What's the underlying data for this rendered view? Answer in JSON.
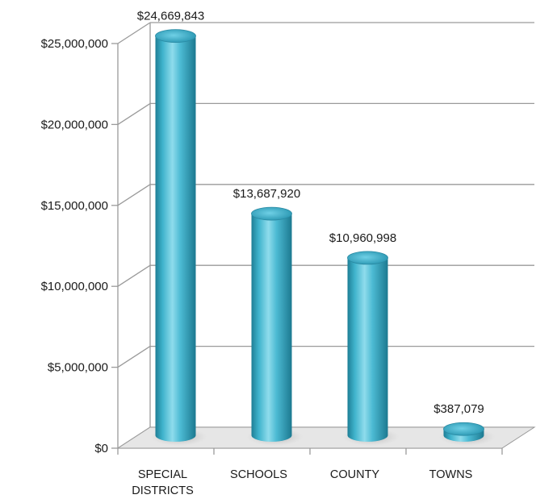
{
  "chart_data": {
    "type": "bar",
    "categories": [
      [
        "SPECIAL",
        "DISTRICTS"
      ],
      [
        "SCHOOLS"
      ],
      [
        "COUNTY"
      ],
      [
        "TOWNS"
      ]
    ],
    "values": [
      24669843,
      13687920,
      10960998,
      387079
    ],
    "data_labels": [
      "$24,669,843",
      "$13,687,920",
      "$10,960,998",
      "$387,079"
    ],
    "y_ticks": [
      0,
      5000000,
      10000000,
      15000000,
      20000000,
      25000000
    ],
    "y_tick_labels": [
      "$0",
      "$5,000,000",
      "$10,000,000",
      "$15,000,000",
      "$20,000,000",
      "$25,000,000"
    ],
    "ylim": [
      0,
      25000000
    ],
    "title": "",
    "xlabel": "",
    "ylabel": "",
    "grid": true,
    "legend": "none",
    "style": "3d-cylinder",
    "colors": {
      "bar_dark": "#1f7f96",
      "bar_mid": "#3fb3cc",
      "bar_light": "#8fdcec",
      "bar_top": "#2e9fba",
      "grid": "#9a9a9a",
      "floor": "#e6e6e6",
      "shadow": "#b8b8b8"
    }
  }
}
